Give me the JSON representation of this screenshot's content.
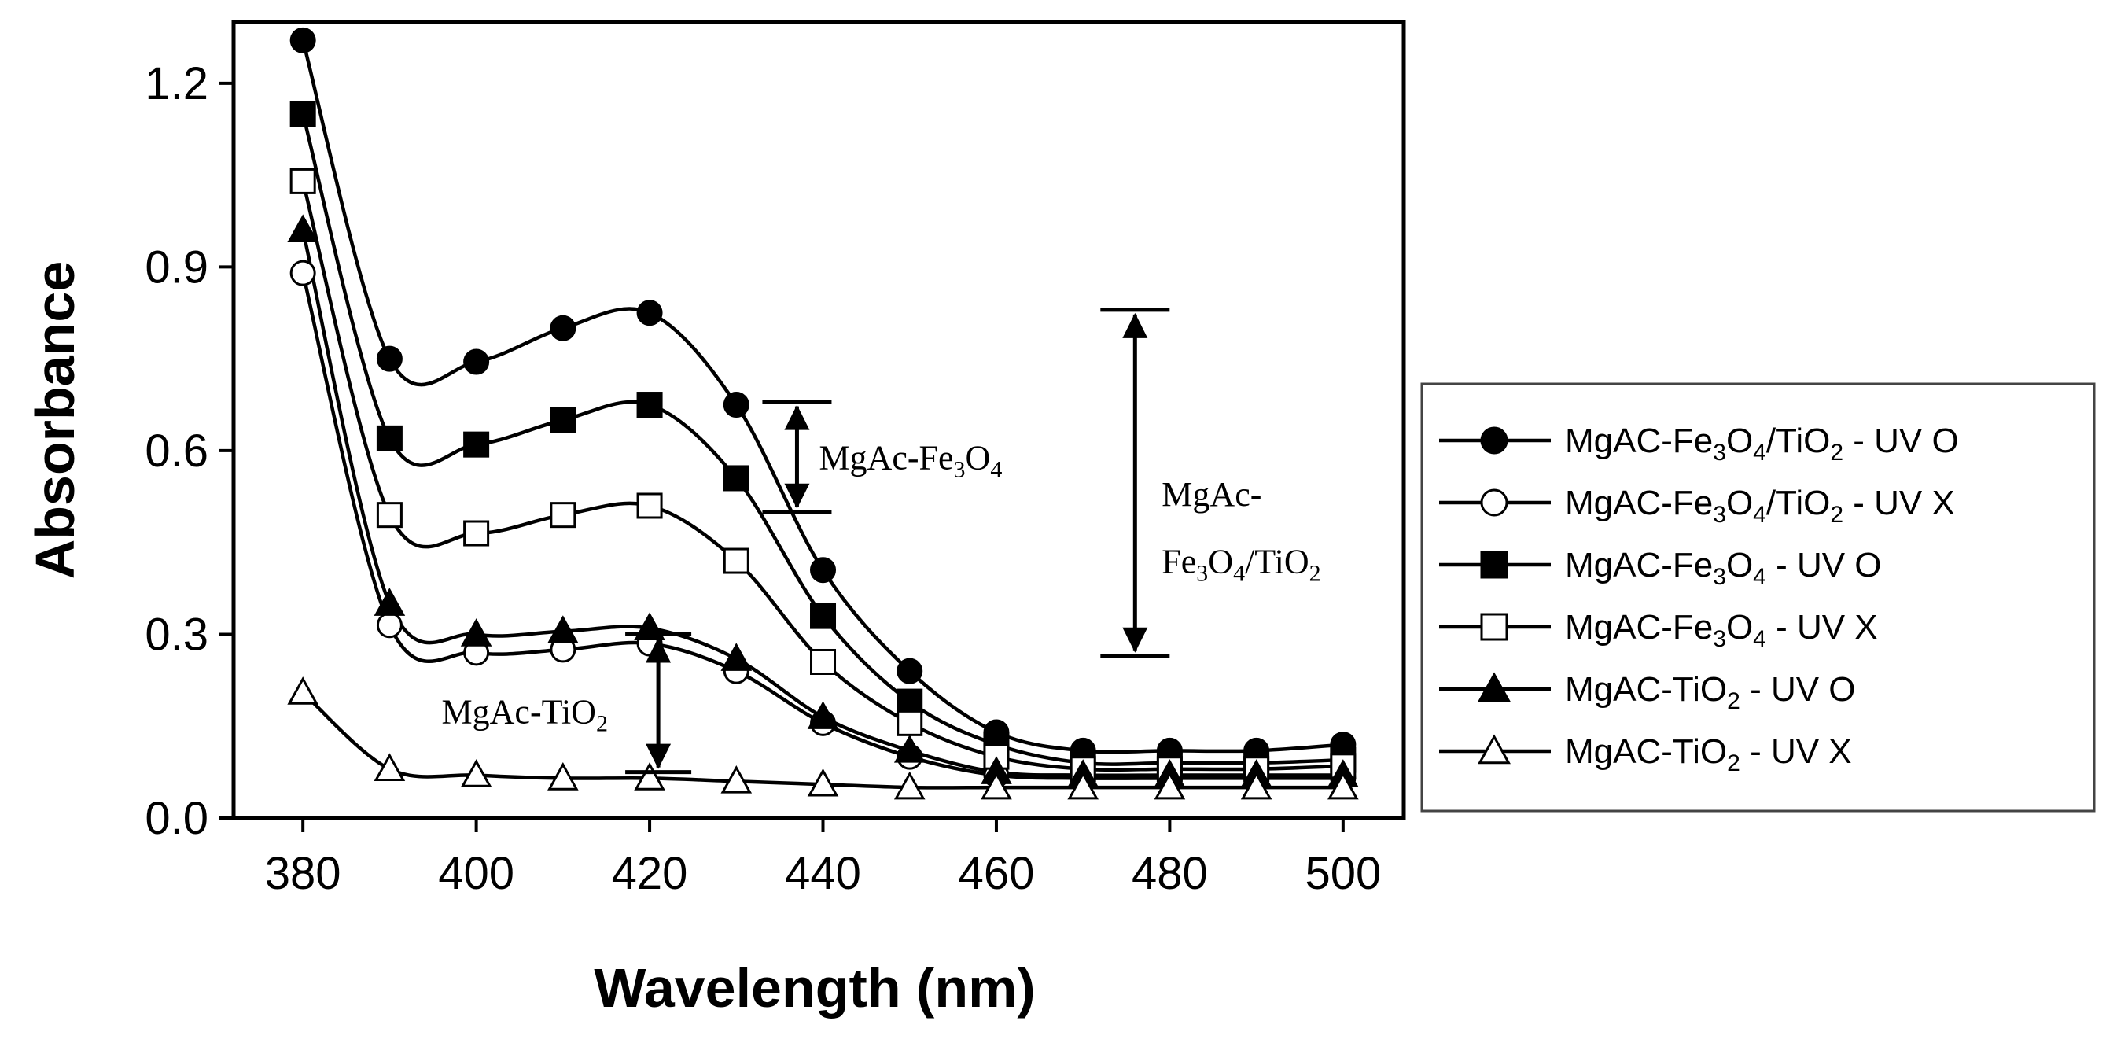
{
  "chart_data": {
    "type": "line",
    "title": "",
    "xlabel": "Wavelength (nm)",
    "ylabel": "Absorbance",
    "xlim": [
      372,
      507
    ],
    "ylim": [
      0,
      1.3
    ],
    "x": [
      380,
      390,
      400,
      410,
      420,
      430,
      440,
      450,
      460,
      470,
      480,
      490,
      500
    ],
    "x_ticks": [
      "380",
      "400",
      "420",
      "440",
      "460",
      "480",
      "500"
    ],
    "y_ticks": [
      "0.0",
      "0.3",
      "0.6",
      "0.9",
      "1.2"
    ],
    "series": [
      {
        "name": "MgAC-Fe3O4/TiO2 - UV O",
        "label_parts": [
          "MgAC-Fe",
          "3",
          "O",
          "4",
          "/TiO",
          "2",
          " - UV O"
        ],
        "marker": "circle",
        "fill": "#000000",
        "values": [
          1.27,
          0.75,
          0.745,
          0.8,
          0.825,
          0.675,
          0.405,
          0.24,
          0.14,
          0.11,
          0.11,
          0.11,
          0.12
        ]
      },
      {
        "name": "MgAC-Fe3O4/TiO2 - UV X",
        "label_parts": [
          "MgAC-Fe",
          "3",
          "O",
          "4",
          "/TiO",
          "2",
          "  - UV X"
        ],
        "marker": "circle",
        "fill": "#ffffff",
        "values": [
          0.89,
          0.315,
          0.27,
          0.275,
          0.285,
          0.24,
          0.155,
          0.1,
          0.07,
          0.065,
          0.065,
          0.065,
          0.065
        ]
      },
      {
        "name": "MgAC-Fe3O4 - UV O",
        "label_parts": [
          "MgAC-Fe",
          "3",
          "O",
          "4",
          " - UV O"
        ],
        "marker": "square",
        "fill": "#000000",
        "values": [
          1.15,
          0.62,
          0.61,
          0.65,
          0.675,
          0.555,
          0.33,
          0.19,
          0.12,
          0.09,
          0.09,
          0.09,
          0.095
        ]
      },
      {
        "name": "MgAC-Fe3O4 - UV X",
        "label_parts": [
          "MgAC-Fe",
          "3",
          "O",
          "4",
          " - UV X"
        ],
        "marker": "square",
        "fill": "#ffffff",
        "values": [
          1.04,
          0.495,
          0.465,
          0.495,
          0.51,
          0.42,
          0.255,
          0.155,
          0.1,
          0.08,
          0.08,
          0.08,
          0.085
        ]
      },
      {
        "name": "MgAC-TiO2 - UV O",
        "label_parts": [
          "MgAC-TiO",
          "2",
          " - UV O"
        ],
        "marker": "triangle",
        "fill": "#000000",
        "values": [
          0.96,
          0.35,
          0.3,
          0.305,
          0.31,
          0.26,
          0.165,
          0.11,
          0.075,
          0.07,
          0.07,
          0.07,
          0.07
        ]
      },
      {
        "name": "MgAC-TiO2 - UV X",
        "label_parts": [
          "MgAC-TiO",
          "2",
          " - UV X"
        ],
        "marker": "triangle",
        "fill": "#ffffff",
        "values": [
          0.205,
          0.08,
          0.07,
          0.065,
          0.065,
          0.06,
          0.055,
          0.05,
          0.05,
          0.05,
          0.05,
          0.05,
          0.05
        ]
      }
    ],
    "annotations": [
      {
        "name": "MgAc-Fe3O4",
        "parts": [
          "MgAc-Fe",
          "3",
          "O",
          "4"
        ],
        "x": 437,
        "y_top": 0.68,
        "y_bottom": 0.5
      },
      {
        "name": "MgAc-Fe3O4/TiO2",
        "parts_line1": [
          "MgAc-"
        ],
        "parts_line2": [
          "Fe",
          "3",
          "O",
          "4",
          "/TiO",
          "2"
        ],
        "x": 476,
        "y_top": 0.83,
        "y_bottom": 0.265
      },
      {
        "name": "MgAc-TiO2",
        "parts": [
          "MgAc-TiO",
          "2"
        ],
        "x": 421,
        "y_top": 0.3,
        "y_bottom": 0.075
      }
    ],
    "legend": "right",
    "grid": false
  }
}
